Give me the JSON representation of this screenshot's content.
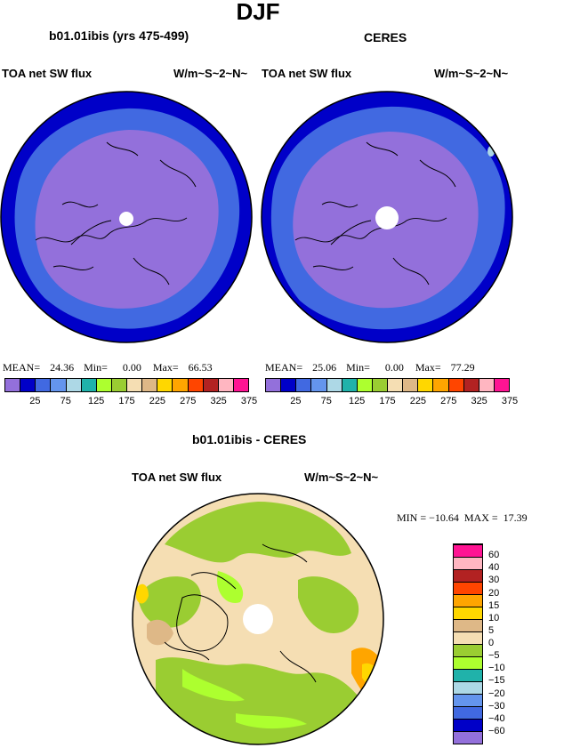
{
  "season": "DJF",
  "panels": [
    {
      "title": "b01.01ibis (yrs 475-499)",
      "var": "TOA net SW flux",
      "units": "W/m~S~2~N~",
      "stats": {
        "mean_label": "MEAN=",
        "mean": "24.36",
        "min_label": "Min=",
        "min": "0.00",
        "max_label": "Max=",
        "max": "66.53"
      }
    },
    {
      "title": "CERES",
      "var": "TOA net SW flux",
      "units": "W/m~S~2~N~",
      "stats": {
        "mean_label": "MEAN=",
        "mean": "25.06",
        "min_label": "Min=",
        "min": "0.00",
        "max_label": "Max=",
        "max": "77.29"
      }
    }
  ],
  "colorbar_top": {
    "colors": [
      "#9370db",
      "#0000c8",
      "#4169e1",
      "#6495ed",
      "#add8e6",
      "#20b2aa",
      "#adff2f",
      "#9acd32",
      "#f5deb3",
      "#deb887",
      "#ffd700",
      "#ffa500",
      "#ff4500",
      "#b22222",
      "#ffb6c1",
      "#ff1493"
    ],
    "tick_labels": [
      "25",
      "75",
      "125",
      "175",
      "225",
      "275",
      "325",
      "375"
    ]
  },
  "diff_panel": {
    "title": "b01.01ibis - CERES",
    "var": "TOA net SW flux",
    "units": "W/m~S~2~N~",
    "stats_text": "MIN = −10.64  MAX =  17.39"
  },
  "colorbar_diff": {
    "colors": [
      "#9370db",
      "#0000c8",
      "#4169e1",
      "#6495ed",
      "#add8e6",
      "#20b2aa",
      "#adff2f",
      "#9acd32",
      "#f5deb3",
      "#deb887",
      "#ffd700",
      "#ffa500",
      "#ff4500",
      "#b22222",
      "#ffb6c1",
      "#ff1493"
    ],
    "tick_labels": [
      "−60",
      "−40",
      "−30",
      "−20",
      "−15",
      "−10",
      "−5",
      "0",
      "5",
      "10",
      "15",
      "20",
      "30",
      "40",
      "60"
    ]
  }
}
